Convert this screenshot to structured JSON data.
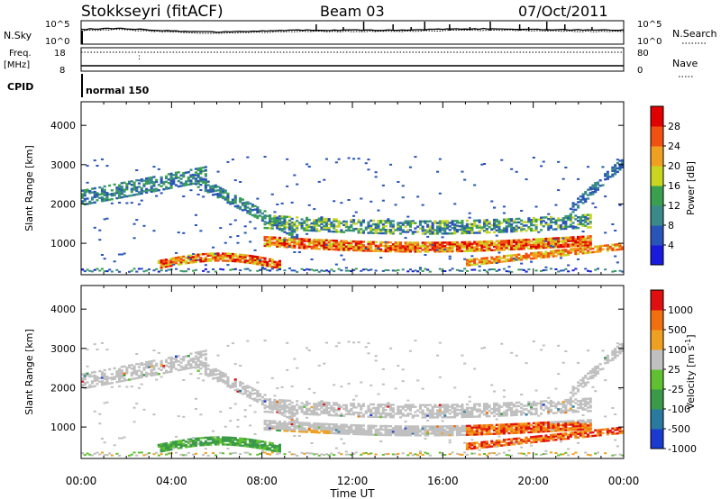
{
  "header": {
    "station": "Stokkseyri (fitACF)",
    "beam": "Beam 03",
    "date": "07/Oct/2011"
  },
  "top_panels": {
    "nsky_label": "N.Sky",
    "nsearch_label": "N.Search",
    "nsky_tick_top": "10^5",
    "nsky_tick_bottom": "10^0",
    "freq_label_1": "Freq.",
    "freq_label_2": "[MHz]",
    "freq_ticks": [
      "18",
      "8"
    ],
    "nave_ticks": [
      "80",
      "0"
    ],
    "nave_label": "Nave",
    "cpid_label": "CPID",
    "cpid_value": "normal 150"
  },
  "chart_data": [
    {
      "type": "heatmap",
      "panel": "power",
      "ylabel": "Slant Range [km]",
      "y_ticks": [
        1000,
        2000,
        3000,
        4000
      ],
      "ylim": [
        200,
        4600
      ],
      "x_ticks": [
        "00:00",
        "04:00",
        "08:00",
        "12:00",
        "16:00",
        "20:00",
        "00:00"
      ],
      "xlim_hours": [
        0,
        24
      ],
      "colorbar_label": "Power [dB]",
      "colorbar_ticks": [
        "4",
        "8",
        "12",
        "16",
        "20",
        "24",
        "28"
      ],
      "colorbar_colors": [
        "#1a1adc",
        "#2a55b8",
        "#3a8a8a",
        "#3aa050",
        "#c8d620",
        "#f0a020",
        "#f05010",
        "#e00000"
      ]
    },
    {
      "type": "heatmap",
      "panel": "velocity",
      "ylabel": "Slant Range [km]",
      "y_ticks": [
        1000,
        2000,
        3000,
        4000
      ],
      "ylim": [
        200,
        4600
      ],
      "x_ticks": [
        "00:00",
        "04:00",
        "08:00",
        "12:00",
        "16:00",
        "20:00",
        "00:00"
      ],
      "xlabel": "Time UT",
      "xlim_hours": [
        0,
        24
      ],
      "colorbar_label": "Velocity [m s",
      "colorbar_label_sup": "-1",
      "colorbar_label_end": "]",
      "colorbar_ticks": [
        "1000",
        "500",
        "100",
        "25",
        "-25",
        "-100",
        "-500",
        "-1000"
      ],
      "colorbar_colors": [
        "#1a3ad0",
        "#2a7aa0",
        "#3a9a4a",
        "#60c030",
        "#c0c0c0",
        "#f0a020",
        "#f07010",
        "#e01010"
      ]
    }
  ]
}
